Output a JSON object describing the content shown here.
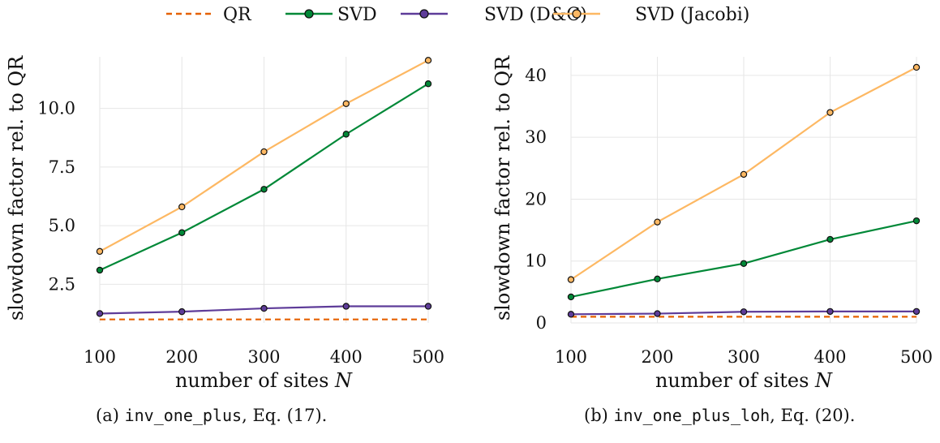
{
  "legend": [
    {
      "label": "QR",
      "color": "#e66101",
      "dashed": true,
      "marker": false
    },
    {
      "label": "SVD",
      "color": "#008837",
      "dashed": false,
      "marker": true
    },
    {
      "label": "SVD (D&C)",
      "color": "#5e3c99",
      "dashed": false,
      "marker": true
    },
    {
      "label": "SVD (Jacobi)",
      "color": "#fdb863",
      "dashed": false,
      "marker": true
    }
  ],
  "chart_data": [
    {
      "type": "line",
      "xlabel": "number of sites N",
      "ylabel": "slowdown factor rel. to QR",
      "x": [
        100,
        200,
        300,
        400,
        500
      ],
      "xticks": [
        "100",
        "200",
        "300",
        "400",
        "500"
      ],
      "yticks": [
        2.5,
        5.0,
        7.5,
        10.0
      ],
      "yticklabels": [
        "2.5",
        "5.0",
        "7.5",
        "10.0"
      ],
      "xlim": [
        100,
        500
      ],
      "ylim": [
        0.85,
        12.2
      ],
      "grid": true,
      "series": [
        {
          "name": "QR",
          "values": [
            1.0,
            1.0,
            1.0,
            1.0,
            1.0
          ]
        },
        {
          "name": "SVD",
          "values": [
            3.1,
            4.7,
            6.55,
            8.9,
            11.05
          ]
        },
        {
          "name": "SVD (D&C)",
          "values": [
            1.25,
            1.33,
            1.47,
            1.56,
            1.56
          ]
        },
        {
          "name": "SVD (Jacobi)",
          "values": [
            3.9,
            5.8,
            8.15,
            10.2,
            12.05
          ]
        }
      ]
    },
    {
      "type": "line",
      "xlabel": "number of sites N",
      "ylabel": "slowdown factor rel. to QR",
      "x": [
        100,
        200,
        300,
        400,
        500
      ],
      "xticks": [
        "100",
        "200",
        "300",
        "400",
        "500"
      ],
      "yticks": [
        0,
        10,
        20,
        30,
        40
      ],
      "yticklabels": [
        "0",
        "10",
        "20",
        "30",
        "40"
      ],
      "xlim": [
        100,
        500
      ],
      "ylim": [
        0,
        43
      ],
      "grid": true,
      "series": [
        {
          "name": "QR",
          "values": [
            1.0,
            1.0,
            1.0,
            1.0,
            1.0
          ]
        },
        {
          "name": "SVD",
          "values": [
            4.2,
            7.1,
            9.6,
            13.5,
            16.5
          ]
        },
        {
          "name": "SVD (D&C)",
          "values": [
            1.4,
            1.5,
            1.8,
            1.85,
            1.85
          ]
        },
        {
          "name": "SVD (Jacobi)",
          "values": [
            7.0,
            16.3,
            24.0,
            34.0,
            41.3
          ]
        }
      ]
    }
  ],
  "captions": [
    {
      "prefix": "(a) ",
      "code": "inv_one_plus",
      "suffix": ", Eq. (17)."
    },
    {
      "prefix": "(b) ",
      "code": "inv_one_plus_loh",
      "suffix": ", Eq. (20)."
    }
  ]
}
